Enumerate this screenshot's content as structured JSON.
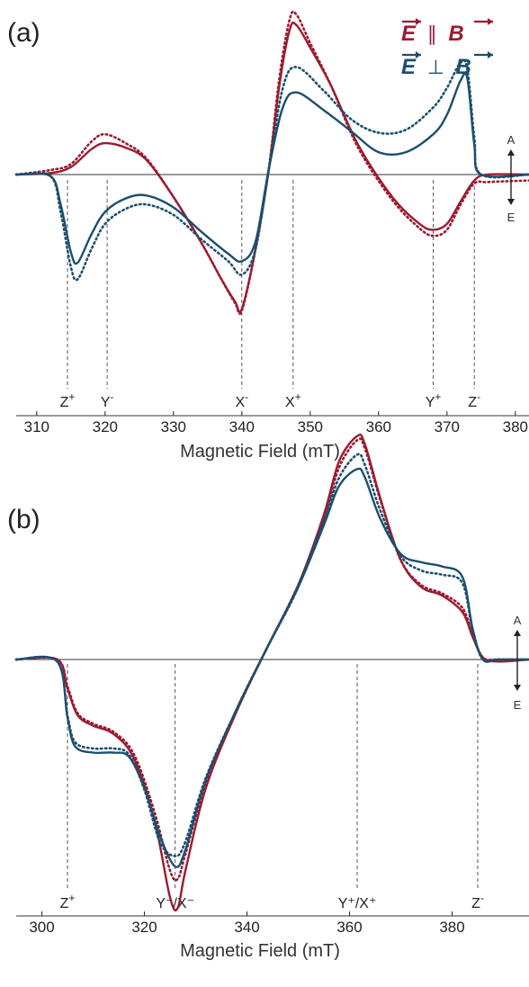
{
  "colors": {
    "parallel": "#9b1b30",
    "perpendicular": "#1b4f6e",
    "axis": "#333333"
  },
  "legend": {
    "parallel": {
      "a": "E",
      "sym": "∥",
      "b": "B"
    },
    "perpendicular": {
      "a": "E",
      "sym": "⊥",
      "b": "B"
    }
  },
  "chart_data": [
    {
      "panel": "(a)",
      "type": "line",
      "xlabel": "Magnetic Field (mT)",
      "xlim": [
        307,
        382
      ],
      "ylim": [
        -1.0,
        1.0
      ],
      "xticks": [
        310,
        320,
        330,
        340,
        350,
        360,
        370,
        380
      ],
      "ae_labels": {
        "up": "A",
        "down": "E"
      },
      "peak_markers": [
        {
          "x": 314.5,
          "label": "Z",
          "sup": "+"
        },
        {
          "x": 320.3,
          "label": "Y",
          "sup": "-"
        },
        {
          "x": 340.0,
          "label": "X",
          "sup": "-"
        },
        {
          "x": 347.5,
          "label": "X",
          "sup": "+"
        },
        {
          "x": 368.0,
          "label": "Y",
          "sup": "+"
        },
        {
          "x": 374.0,
          "label": "Z",
          "sup": "-"
        }
      ],
      "series": [
        {
          "name": "E ∥ B",
          "style": "solid",
          "color": "parallel",
          "x": [
            307,
            312,
            315,
            318,
            320,
            323,
            326,
            330,
            334,
            337,
            339,
            340,
            342,
            344,
            345.5,
            347,
            348,
            350,
            353,
            357,
            362,
            366,
            368,
            370,
            372,
            374,
            376,
            382
          ],
          "y": [
            0.0,
            0.01,
            0.05,
            0.17,
            0.21,
            0.18,
            0.1,
            -0.15,
            -0.45,
            -0.7,
            -0.85,
            -0.9,
            -0.5,
            0.05,
            0.6,
            0.97,
            1.0,
            0.85,
            0.6,
            0.2,
            -0.15,
            -0.33,
            -0.37,
            -0.33,
            -0.18,
            -0.04,
            0.0,
            0.0
          ]
        },
        {
          "name": "E ∥ B (sim)",
          "style": "dotted",
          "color": "parallel",
          "x": [
            307,
            312,
            315,
            318,
            320,
            323,
            326,
            330,
            334,
            337,
            339,
            340,
            342,
            344,
            345.5,
            347,
            348,
            350,
            353,
            357,
            362,
            366,
            368,
            370,
            372,
            374,
            376,
            382
          ],
          "y": [
            0.0,
            0.03,
            0.07,
            0.22,
            0.27,
            0.21,
            0.11,
            -0.15,
            -0.45,
            -0.7,
            -0.86,
            -0.91,
            -0.5,
            0.06,
            0.65,
            1.04,
            1.07,
            0.88,
            0.6,
            0.18,
            -0.17,
            -0.36,
            -0.41,
            -0.37,
            -0.2,
            -0.06,
            -0.05,
            -0.04
          ]
        },
        {
          "name": "E ⊥ B",
          "style": "solid",
          "color": "perpendicular",
          "x": [
            307,
            312,
            313.5,
            315,
            316,
            318,
            320,
            323,
            326,
            330,
            334,
            338,
            340,
            342,
            344,
            346,
            348,
            352,
            356,
            360,
            364,
            368,
            370,
            372,
            373,
            374,
            375,
            382
          ],
          "y": [
            0.0,
            -0.01,
            -0.2,
            -0.52,
            -0.59,
            -0.4,
            -0.25,
            -0.16,
            -0.14,
            -0.22,
            -0.38,
            -0.53,
            -0.58,
            -0.45,
            0.05,
            0.45,
            0.55,
            0.43,
            0.29,
            0.15,
            0.15,
            0.27,
            0.4,
            0.63,
            0.64,
            0.2,
            0.0,
            0.0
          ]
        },
        {
          "name": "E ⊥ B (sim)",
          "style": "dotted",
          "color": "perpendicular",
          "x": [
            307,
            312,
            313.5,
            315,
            316,
            318,
            320,
            323,
            326,
            330,
            334,
            338,
            340,
            342,
            344,
            346,
            348,
            352,
            356,
            360,
            364,
            368,
            370,
            372,
            373,
            374,
            375,
            382
          ],
          "y": [
            0.0,
            -0.01,
            -0.25,
            -0.62,
            -0.7,
            -0.5,
            -0.33,
            -0.23,
            -0.2,
            -0.27,
            -0.43,
            -0.58,
            -0.67,
            -0.5,
            0.05,
            0.58,
            0.72,
            0.56,
            0.37,
            0.28,
            0.3,
            0.45,
            0.58,
            0.75,
            0.7,
            0.25,
            0.0,
            0.0
          ]
        }
      ]
    },
    {
      "panel": "(b)",
      "type": "line",
      "xlabel": "Magnetic Field (mT)",
      "xlim": [
        295,
        395
      ],
      "ylim": [
        -1.0,
        1.0
      ],
      "xticks": [
        300,
        320,
        340,
        360,
        380
      ],
      "ae_labels": {
        "up": "A",
        "down": "E"
      },
      "peak_markers": [
        {
          "x": 305.0,
          "label": "Z",
          "sup": "+"
        },
        {
          "x": 326.0,
          "label": "Y-/X",
          "sup": "-",
          "display": "Y⁻/X⁻"
        },
        {
          "x": 361.5,
          "label": "Y+/X",
          "sup": "+",
          "display": "Y⁺/X⁺"
        },
        {
          "x": 385.0,
          "label": "Z",
          "sup": "-"
        }
      ],
      "series": [
        {
          "name": "E ∥ B",
          "style": "solid",
          "color": "parallel",
          "x": [
            295,
            303,
            305,
            307,
            310,
            314,
            318,
            322,
            325,
            326.5,
            328,
            332,
            338,
            344,
            350,
            355,
            358,
            361.5,
            363,
            366,
            370,
            374,
            378,
            382,
            384,
            386,
            389,
            395
          ],
          "y": [
            0.0,
            0.0,
            -0.14,
            -0.27,
            -0.32,
            -0.36,
            -0.48,
            -0.78,
            -1.15,
            -1.2,
            -1.02,
            -0.62,
            -0.25,
            0.06,
            0.36,
            0.7,
            0.96,
            1.08,
            1.04,
            0.78,
            0.48,
            0.35,
            0.31,
            0.23,
            0.11,
            0.01,
            -0.01,
            0.0
          ]
        },
        {
          "name": "E ∥ B (sim)",
          "style": "dotted",
          "color": "parallel",
          "x": [
            295,
            303,
            305,
            307,
            310,
            314,
            318,
            322,
            325,
            326.5,
            328,
            332,
            338,
            344,
            350,
            355,
            358,
            361.5,
            363,
            366,
            370,
            374,
            378,
            382,
            384,
            386,
            389,
            395
          ],
          "y": [
            0.0,
            0.0,
            -0.13,
            -0.26,
            -0.31,
            -0.35,
            -0.46,
            -0.74,
            -1.02,
            -1.06,
            -0.94,
            -0.6,
            -0.24,
            0.06,
            0.35,
            0.68,
            0.93,
            1.06,
            1.02,
            0.77,
            0.48,
            0.36,
            0.32,
            0.25,
            0.12,
            0.01,
            0.0,
            0.0
          ]
        },
        {
          "name": "E ⊥ B",
          "style": "solid",
          "color": "perpendicular",
          "x": [
            295,
            303,
            305,
            306.5,
            310,
            314,
            317,
            320,
            323,
            326,
            328,
            332,
            338,
            344,
            350,
            355,
            358,
            361.5,
            363,
            366,
            370,
            374,
            378,
            382,
            384,
            386,
            389,
            395
          ],
          "y": [
            0.0,
            -0.01,
            -0.28,
            -0.42,
            -0.45,
            -0.45,
            -0.47,
            -0.62,
            -0.85,
            -1.0,
            -0.92,
            -0.58,
            -0.24,
            0.06,
            0.35,
            0.65,
            0.84,
            0.92,
            0.88,
            0.68,
            0.51,
            0.47,
            0.45,
            0.4,
            0.15,
            0.0,
            0.0,
            0.0
          ]
        },
        {
          "name": "E ⊥ B (sim)",
          "style": "dotted",
          "color": "perpendicular",
          "x": [
            295,
            303,
            305,
            306.5,
            310,
            314,
            317,
            320,
            323,
            326,
            328,
            332,
            338,
            344,
            350,
            355,
            358,
            361.5,
            363,
            366,
            370,
            374,
            378,
            382,
            384,
            386,
            389,
            395
          ],
          "y": [
            0.0,
            -0.01,
            -0.27,
            -0.4,
            -0.43,
            -0.43,
            -0.46,
            -0.63,
            -0.88,
            -0.95,
            -0.88,
            -0.57,
            -0.24,
            0.06,
            0.36,
            0.67,
            0.88,
            0.99,
            0.94,
            0.72,
            0.5,
            0.43,
            0.41,
            0.37,
            0.14,
            0.0,
            0.0,
            0.0
          ]
        }
      ]
    }
  ]
}
